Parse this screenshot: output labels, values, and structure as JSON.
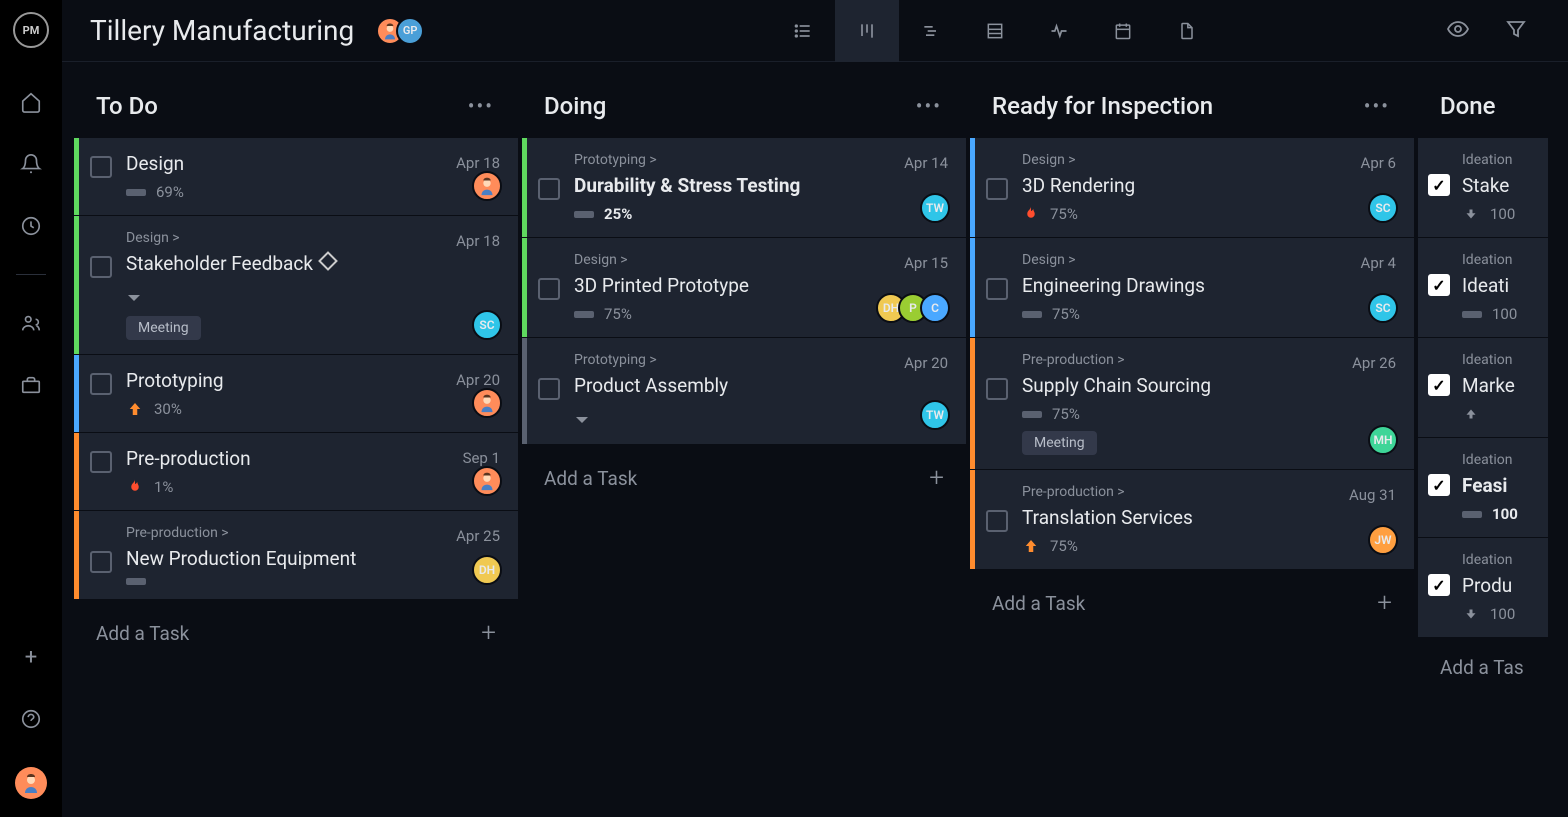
{
  "colors": {
    "bg": "#0a0d14",
    "panel": "#1e2430",
    "text": "#e8eaed",
    "muted": "#8b919c",
    "green": "#5fd95f",
    "orange": "#ff8c2e",
    "blue": "#4aa8ff",
    "grey": "#5a6170"
  },
  "project_title": "Tillery Manufacturing",
  "header_avatars": [
    {
      "bg": "#ff8c5a",
      "label": "",
      "person": true
    },
    {
      "bg": "#4a9fd8",
      "label": "GP"
    }
  ],
  "view_tabs": [
    "list",
    "board",
    "gantt",
    "sheet",
    "activity",
    "calendar",
    "files"
  ],
  "active_tab": 1,
  "add_task_label": "Add a Task",
  "columns": [
    {
      "title": "To Do",
      "cards": [
        {
          "stripe": "#5fd95f",
          "title": "Design",
          "pct": "69%",
          "date": "Apr 18",
          "avatars": [
            {
              "bg": "#ff8c5a",
              "label": "",
              "person": true
            }
          ],
          "bold": false
        },
        {
          "stripe": "#5fd95f",
          "breadcrumb": "Design >",
          "title": "Stakeholder Feedback",
          "diamond": true,
          "arrow_down": true,
          "date": "Apr 18",
          "tags": [
            "Meeting"
          ],
          "avatars": [
            {
              "bg": "#2fc5e8",
              "label": "SC"
            }
          ]
        },
        {
          "stripe": "#4aa8ff",
          "title": "Prototyping",
          "priority": "up-orange",
          "pct": "30%",
          "date": "Apr 20",
          "avatars": [
            {
              "bg": "#ff8c5a",
              "label": "",
              "person": true
            }
          ]
        },
        {
          "stripe": "#ff8c2e",
          "title": "Pre-production",
          "priority": "fire",
          "pct": "1%",
          "date": "Sep 1",
          "avatars": [
            {
              "bg": "#ff8c5a",
              "label": "",
              "person": true
            }
          ]
        },
        {
          "stripe": "#ff8c2e",
          "breadcrumb": "Pre-production >",
          "title": "New Production Equipment",
          "pct": "",
          "bar_only": true,
          "date": "Apr 25",
          "avatars": [
            {
              "bg": "#f0c952",
              "label": "DH"
            }
          ]
        }
      ]
    },
    {
      "title": "Doing",
      "cards": [
        {
          "stripe": "#5fd95f",
          "breadcrumb": "Prototyping >",
          "title": "Durability & Stress Testing",
          "bold": true,
          "pct": "25%",
          "date": "Apr 14",
          "avatars": [
            {
              "bg": "#2fc5e8",
              "label": "TW"
            }
          ]
        },
        {
          "stripe": "#5fd95f",
          "breadcrumb": "Design >",
          "title": "3D Printed Prototype",
          "pct": "75%",
          "date": "Apr 15",
          "avatars": [
            {
              "bg": "#f0c952",
              "label": "DH"
            },
            {
              "bg": "#9acd32",
              "label": "P"
            },
            {
              "bg": "#4aa8ff",
              "label": "C"
            }
          ]
        },
        {
          "stripe": "#5a6170",
          "breadcrumb": "Prototyping >",
          "title": "Product Assembly",
          "arrow_down": true,
          "date": "Apr 20",
          "avatars": [
            {
              "bg": "#2fc5e8",
              "label": "TW"
            }
          ]
        }
      ]
    },
    {
      "title": "Ready for Inspection",
      "cards": [
        {
          "stripe": "#4aa8ff",
          "breadcrumb": "Design >",
          "title": "3D Rendering",
          "priority": "fire",
          "pct": "75%",
          "date": "Apr 6",
          "avatars": [
            {
              "bg": "#2fc5e8",
              "label": "SC"
            }
          ]
        },
        {
          "stripe": "#4aa8ff",
          "breadcrumb": "Design >",
          "title": "Engineering Drawings",
          "pct": "75%",
          "date": "Apr 4",
          "avatars": [
            {
              "bg": "#2fc5e8",
              "label": "SC"
            }
          ]
        },
        {
          "stripe": "#ff8c2e",
          "breadcrumb": "Pre-production >",
          "title": "Supply Chain Sourcing",
          "pct": "75%",
          "date": "Apr 26",
          "tags": [
            "Meeting"
          ],
          "avatars": [
            {
              "bg": "#3ed598",
              "label": "MH"
            }
          ]
        },
        {
          "stripe": "#ff8c2e",
          "breadcrumb": "Pre-production >",
          "title": "Translation Services",
          "priority": "up-orange",
          "pct": "75%",
          "date": "Aug 31",
          "avatars": [
            {
              "bg": "#ff9f40",
              "label": "JW"
            }
          ]
        }
      ]
    },
    {
      "title": "Done",
      "partial": true,
      "cards": [
        {
          "breadcrumb": "Ideation",
          "title": "Stake",
          "checked": true,
          "pct": "100",
          "priority": "down-grey"
        },
        {
          "breadcrumb": "Ideation",
          "title": "Ideati",
          "checked": true,
          "pct": "100",
          "bar_only": true
        },
        {
          "breadcrumb": "Ideation",
          "title": "Marke",
          "checked": true,
          "priority": "up-grey"
        },
        {
          "breadcrumb": "Ideation",
          "title": "Feasi",
          "checked": true,
          "bold": true,
          "pct": "100",
          "bar_only": true
        },
        {
          "breadcrumb": "Ideation",
          "title": "Produ",
          "checked": true,
          "pct": "100",
          "priority": "down-grey"
        }
      ]
    }
  ]
}
